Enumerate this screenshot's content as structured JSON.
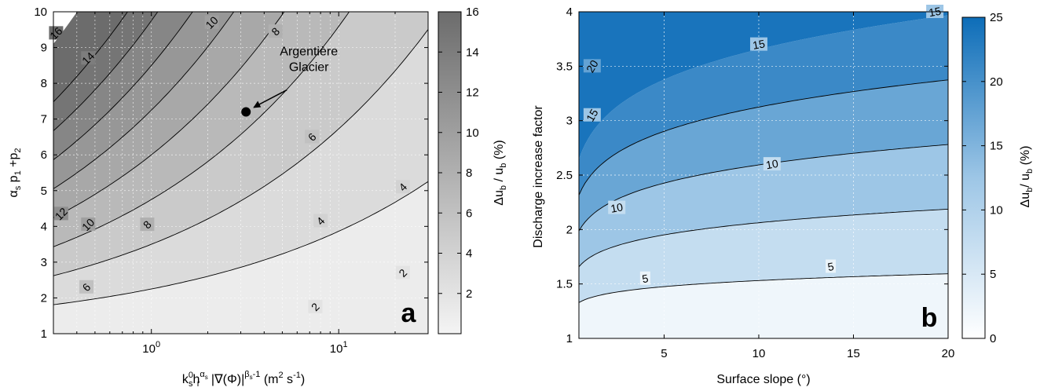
{
  "chart_data": [
    {
      "panel": "a",
      "type": "contour",
      "xscale": "log",
      "xlim": [
        0.3,
        30
      ],
      "ylim": [
        1,
        10
      ],
      "xticks": [
        {
          "v": 1,
          "base": "10",
          "exp": "0"
        },
        {
          "v": 10,
          "base": "10",
          "exp": "1"
        }
      ],
      "yticks": [
        1,
        2,
        3,
        4,
        5,
        6,
        7,
        8,
        9,
        10
      ],
      "xlabel": "k_s^0 h_r^{α_s} |∇(Φ)|^{β_s}-1 (m^2 s^-1)",
      "ylabel": "α_s p_1 + p_2",
      "colorbar": {
        "label": "Δu_b / u_b (%)",
        "min": 0,
        "max": 16,
        "ticks": [
          2,
          4,
          6,
          8,
          10,
          12,
          14,
          16
        ],
        "cmap": "gray-light-to-dark"
      },
      "contour_levels": [
        2,
        4,
        6,
        8,
        10,
        12,
        14,
        16
      ],
      "contour_labels": [
        {
          "level": "2",
          "x": 7.5,
          "y": 1.75
        },
        {
          "level": "2",
          "x": 22,
          "y": 2.7
        },
        {
          "level": "4",
          "x": 8,
          "y": 4.15
        },
        {
          "level": "4",
          "x": 22,
          "y": 5.1
        },
        {
          "level": "6",
          "x": 0.45,
          "y": 2.3
        },
        {
          "level": "6",
          "x": 7.2,
          "y": 6.5
        },
        {
          "level": "8",
          "x": 0.95,
          "y": 4.05
        },
        {
          "level": "8",
          "x": 4.6,
          "y": 9.45
        },
        {
          "level": "10",
          "x": 0.46,
          "y": 4.05
        },
        {
          "level": "10",
          "x": 2.1,
          "y": 9.7
        },
        {
          "level": "12",
          "x": 0.33,
          "y": 4.35
        },
        {
          "level": "14",
          "x": 0.46,
          "y": 8.7
        },
        {
          "level": "16",
          "x": 0.31,
          "y": 9.4
        }
      ],
      "point": {
        "label": [
          "Argentière",
          "Glacier"
        ],
        "x": 3.2,
        "y": 7.2
      }
    },
    {
      "panel": "b",
      "type": "contour",
      "xlim": [
        0.5,
        20
      ],
      "ylim": [
        1,
        4
      ],
      "xticks": [
        5,
        10,
        15,
        20
      ],
      "yticks": [
        1,
        1.5,
        2,
        2.5,
        3,
        3.5,
        4
      ],
      "xlabel": "Surface slope (°)",
      "ylabel": "Discharge increase factor",
      "colorbar": {
        "label": "Δu_b / u_b (%)",
        "min": 0,
        "max": 25,
        "ticks": [
          0,
          5,
          10,
          15,
          20,
          25
        ],
        "cmap": "white-to-blue"
      },
      "contour_levels": [
        5,
        10,
        15,
        20
      ],
      "contour_labels": [
        {
          "level": "5",
          "x": 4,
          "y": 1.55
        },
        {
          "level": "5",
          "x": 13.8,
          "y": 1.66
        },
        {
          "level": "10",
          "x": 2.5,
          "y": 2.2
        },
        {
          "level": "10",
          "x": 10.7,
          "y": 2.6
        },
        {
          "level": "15",
          "x": 1.2,
          "y": 3.05
        },
        {
          "level": "15",
          "x": 10,
          "y": 3.7
        },
        {
          "level": "15",
          "x": 19.3,
          "y": 4.0
        },
        {
          "level": "20",
          "x": 1.2,
          "y": 3.5
        }
      ]
    }
  ],
  "panel_letters": {
    "a": "a",
    "b": "b"
  }
}
